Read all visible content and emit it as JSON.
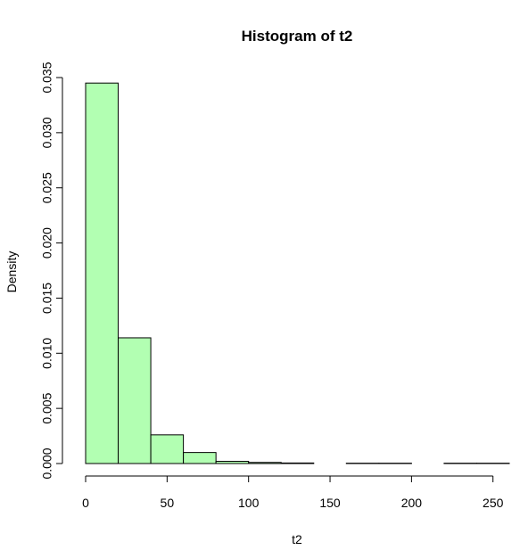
{
  "chart_data": {
    "type": "bar",
    "title": "Histogram of t2",
    "xlabel": "t2",
    "ylabel": "Density",
    "bar_color": "#B2FFB2",
    "bin_edges": [
      0,
      20,
      40,
      60,
      80,
      100,
      120,
      140,
      160,
      180,
      200,
      220,
      240,
      260
    ],
    "values": [
      0.0345,
      0.0114,
      0.0026,
      0.001,
      0.0002,
      0.0001,
      5e-05,
      0.0,
      3e-05,
      3e-05,
      0.0,
      3e-05,
      3e-05
    ],
    "xlim": [
      0,
      260
    ],
    "ylim": [
      0,
      0.035
    ],
    "x_ticks": [
      0,
      50,
      100,
      150,
      200,
      250
    ],
    "x_tick_labels": [
      "0",
      "50",
      "100",
      "150",
      "200",
      "250"
    ],
    "y_ticks": [
      0,
      0.005,
      0.01,
      0.015,
      0.02,
      0.025,
      0.03,
      0.035
    ],
    "y_tick_labels": [
      "0.000",
      "0.005",
      "0.010",
      "0.015",
      "0.020",
      "0.025",
      "0.030",
      "0.035"
    ],
    "grid": false,
    "legend": "none"
  }
}
